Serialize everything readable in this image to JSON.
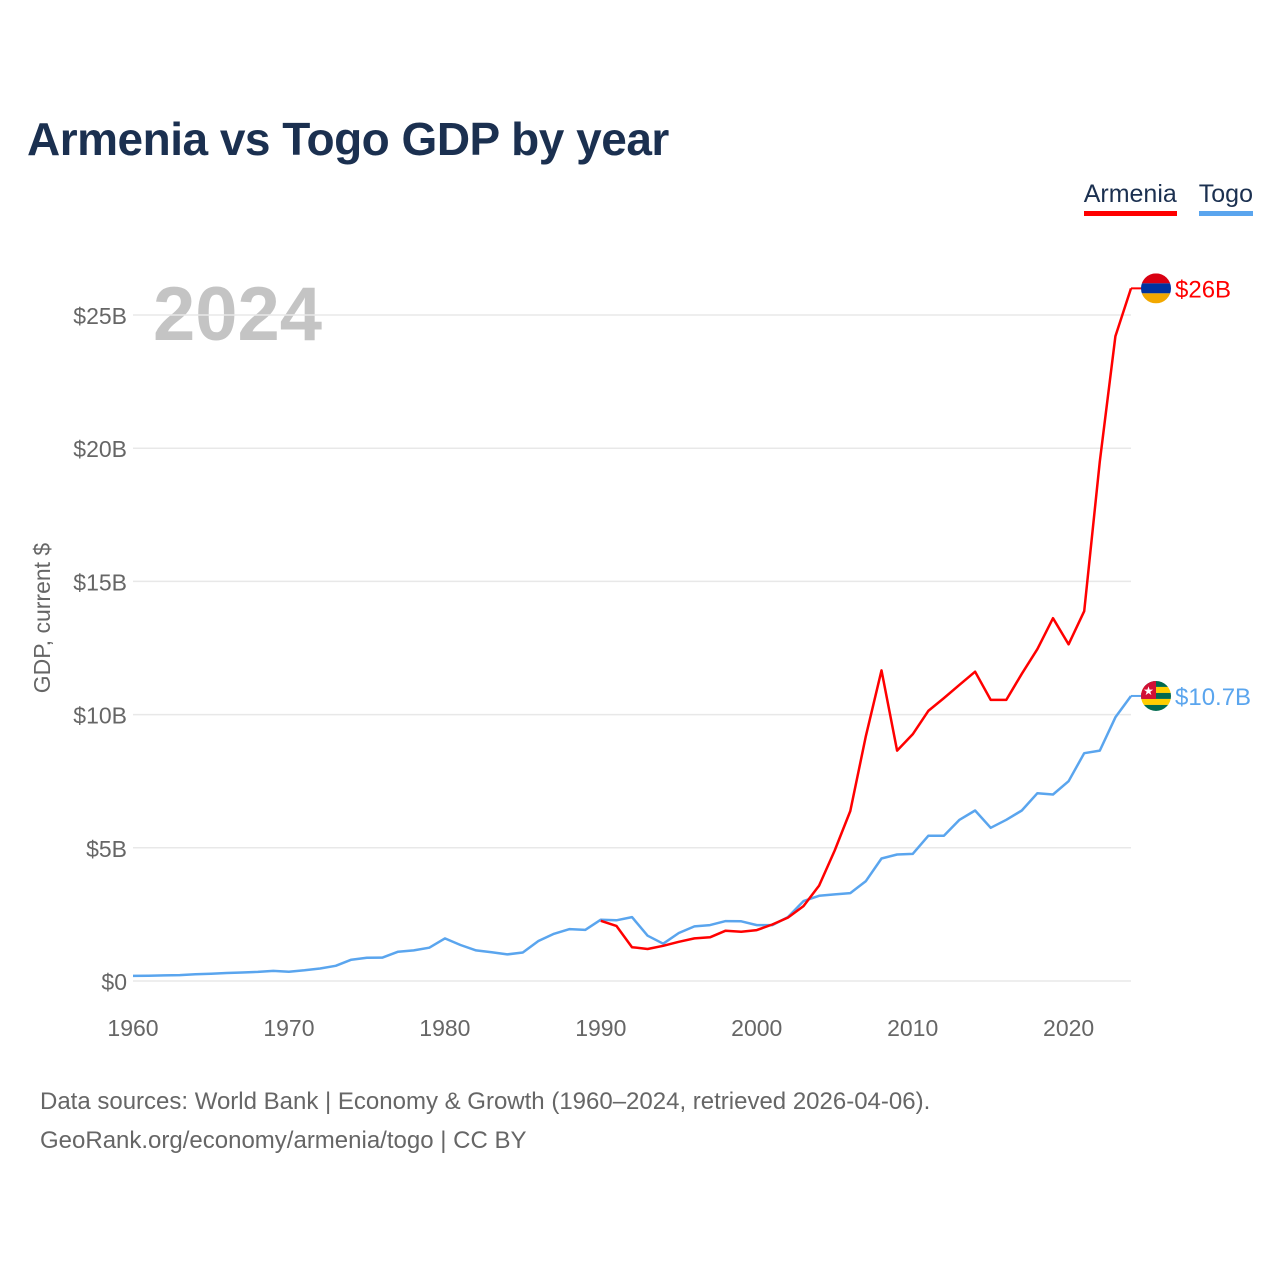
{
  "colors": {
    "title": "#1b3050",
    "armenia": "#ff0000",
    "togo": "#5aa5ee",
    "grid": "#e8e8e8",
    "axis_text": "#666666",
    "year_watermark": "#c4c4c4"
  },
  "chart_data": {
    "type": "line",
    "title": "Armenia vs Togo GDP by year",
    "ylabel": "GDP, current $",
    "xlabel": "",
    "year_label": "2024",
    "xlim": [
      1960,
      2024
    ],
    "ylim": [
      0,
      26
    ],
    "grid": true,
    "legend_position": "top-right",
    "x_ticks": [
      1960,
      1970,
      1980,
      1990,
      2000,
      2010,
      2020
    ],
    "x_tick_labels": [
      "1960",
      "1970",
      "1980",
      "1990",
      "2000",
      "2010",
      "2020"
    ],
    "y_ticks": [
      0,
      5,
      10,
      15,
      20,
      25
    ],
    "y_tick_labels": [
      "$0",
      "$5B",
      "$10B",
      "$15B",
      "$20B",
      "$25B"
    ],
    "series": [
      {
        "name": "Armenia",
        "color": "#ff0000",
        "end_label": "$26B",
        "flag": "armenia-flag",
        "start_year": 1990,
        "values": [
          2.26,
          2.07,
          1.27,
          1.2,
          1.32,
          1.47,
          1.6,
          1.64,
          1.89,
          1.85,
          1.91,
          2.12,
          2.38,
          2.81,
          3.58,
          4.9,
          6.38,
          9.2,
          11.66,
          8.65,
          9.26,
          10.14,
          10.62,
          11.12,
          11.61,
          10.55,
          10.55,
          11.53,
          12.46,
          13.62,
          12.64,
          13.88,
          19.5,
          24.2,
          26.0
        ]
      },
      {
        "name": "Togo",
        "color": "#5aa5ee",
        "end_label": "$10.7B",
        "flag": "togo-flag",
        "start_year": 1960,
        "values": [
          0.19,
          0.2,
          0.21,
          0.22,
          0.25,
          0.27,
          0.3,
          0.32,
          0.34,
          0.38,
          0.35,
          0.4,
          0.47,
          0.57,
          0.8,
          0.87,
          0.88,
          1.1,
          1.15,
          1.25,
          1.6,
          1.35,
          1.15,
          1.08,
          1.0,
          1.07,
          1.5,
          1.77,
          1.95,
          1.92,
          2.3,
          2.28,
          2.4,
          1.7,
          1.4,
          1.8,
          2.05,
          2.1,
          2.25,
          2.24,
          2.1,
          2.1,
          2.4,
          3.0,
          3.2,
          3.25,
          3.3,
          3.75,
          4.6,
          4.75,
          4.77,
          5.45,
          5.45,
          6.05,
          6.4,
          5.75,
          6.05,
          6.4,
          7.05,
          7.0,
          7.5,
          8.55,
          8.65,
          9.9,
          10.7
        ]
      }
    ]
  },
  "footer": {
    "line1": "Data sources: World Bank | Economy & Growth (1960–2024, retrieved 2026-04-06).",
    "line2": "GeoRank.org/economy/armenia/togo | CC BY"
  }
}
